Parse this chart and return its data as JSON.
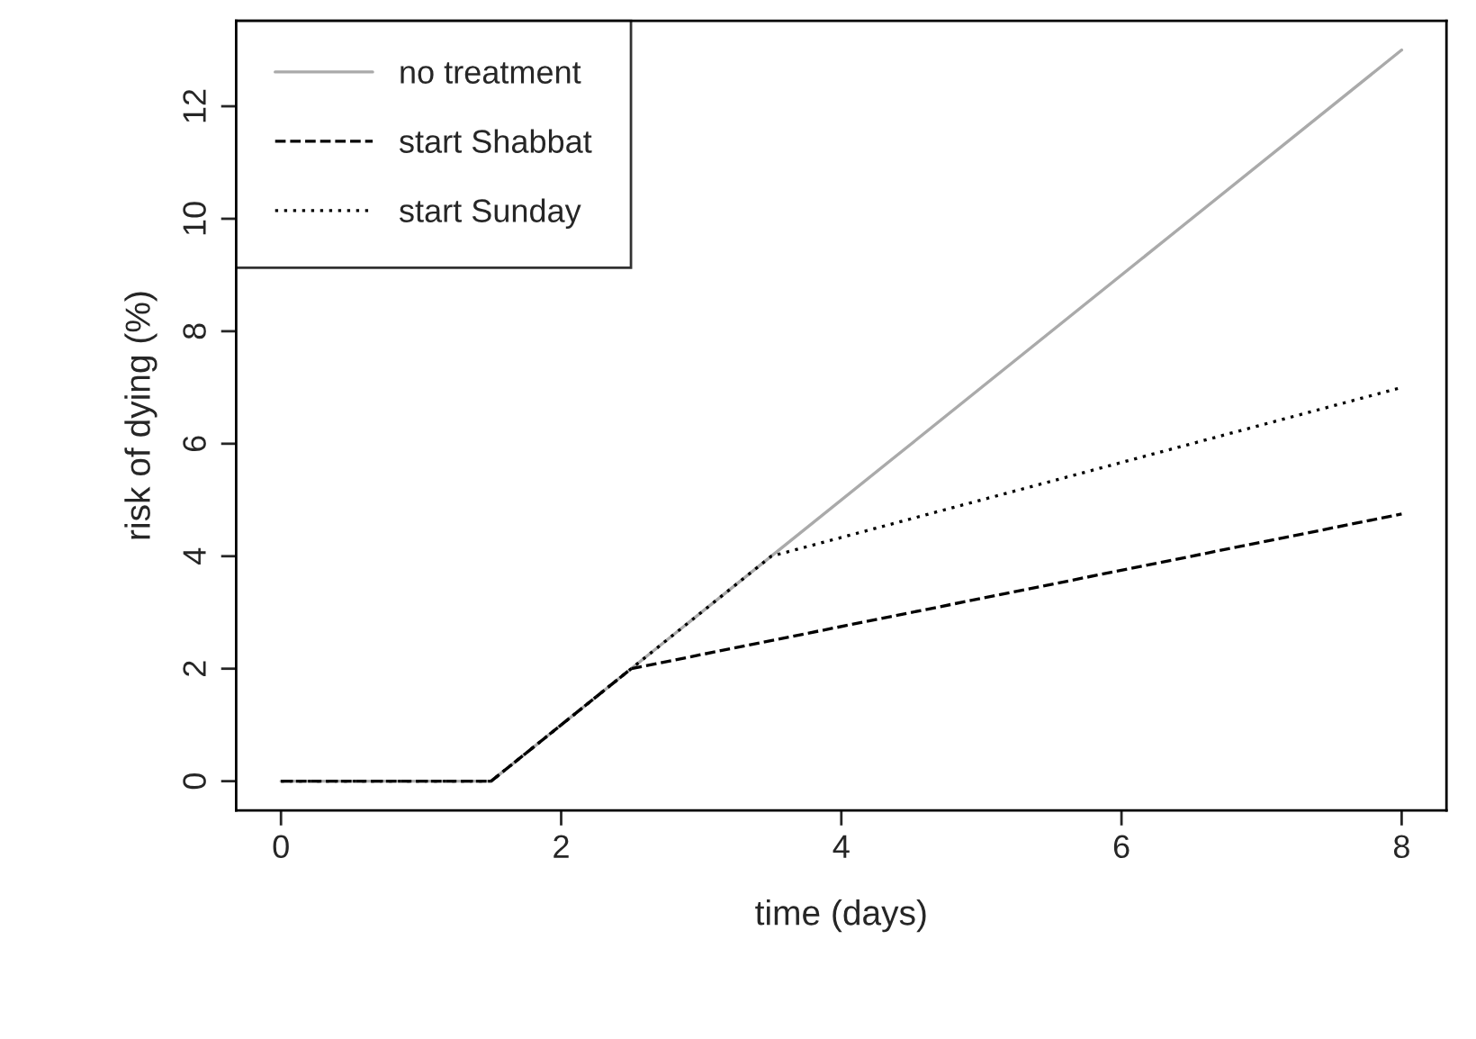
{
  "chart_data": {
    "type": "line",
    "xlabel": "time (days)",
    "ylabel": "risk of dying (%)",
    "xlim": [
      -0.32,
      8.32
    ],
    "ylim": [
      -0.52,
      13.52
    ],
    "xticks": [
      0,
      2,
      4,
      6,
      8
    ],
    "yticks": [
      0,
      2,
      4,
      6,
      8,
      10,
      12
    ],
    "grid": false,
    "legend": "top left",
    "marker": "none",
    "series": [
      {
        "name": "no treatment",
        "color": "#aaaaaa",
        "line_style": "solid",
        "x": [
          0,
          1.5,
          8
        ],
        "values": [
          0,
          0,
          13
        ]
      },
      {
        "name": "start Shabbat",
        "color": "#000000",
        "line_style": "dashed",
        "x": [
          0,
          1.5,
          2.5,
          8
        ],
        "values": [
          0,
          0,
          2,
          4.75
        ]
      },
      {
        "name": "start Sunday",
        "color": "#000000",
        "line_style": "dotted",
        "x": [
          0,
          1.5,
          3.5,
          8
        ],
        "values": [
          0,
          0,
          4,
          7
        ]
      }
    ]
  }
}
